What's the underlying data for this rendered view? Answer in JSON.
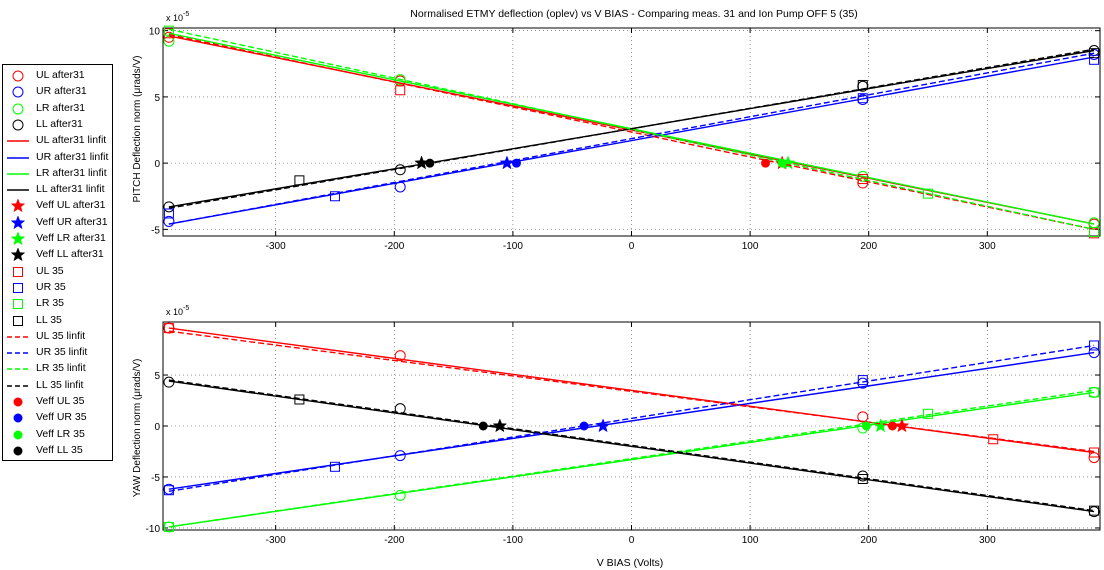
{
  "chart_data": [
    {
      "type": "line",
      "title": "Normalised ETMY deflection (oplev) vs V BIAS - Comparing meas. 31 and Ion Pump OFF 5 (35)",
      "ylabel": "PITCH Deflection norm (μrads/V)",
      "xlabel": "",
      "exponent_label": "x 10",
      "exponent_sup": "-5",
      "xlim": [
        -395,
        395
      ],
      "ylim": [
        -5.5,
        10.2
      ],
      "xticks": [
        -300,
        -200,
        -100,
        0,
        100,
        200,
        300
      ],
      "xtick_labels": [
        "-300",
        "-200",
        "-100",
        "0",
        "100",
        "200",
        "300"
      ],
      "yticks": [
        -5,
        0,
        5,
        10
      ],
      "ytick_labels": [
        "-5",
        "0",
        "5",
        "10"
      ],
      "grid": true,
      "series": [
        {
          "name": "UL after31",
          "group": "after31",
          "color": "#ff0000",
          "marker": "circle",
          "x": [
            -390,
            -195,
            195,
            390
          ],
          "y": [
            9.5,
            6.2,
            -1.5,
            -4.6
          ]
        },
        {
          "name": "UR after31",
          "group": "after31",
          "color": "#0000ff",
          "marker": "circle",
          "x": [
            -390,
            -195,
            195,
            390
          ],
          "y": [
            -4.4,
            -1.8,
            4.8,
            8.2
          ]
        },
        {
          "name": "LR after31",
          "group": "after31",
          "color": "#00ff00",
          "marker": "circle",
          "x": [
            -390,
            -195,
            195,
            390
          ],
          "y": [
            9.2,
            6.3,
            -1.0,
            -4.5
          ]
        },
        {
          "name": "LL after31",
          "group": "after31",
          "color": "#000000",
          "marker": "circle",
          "x": [
            -390,
            -195,
            195,
            390
          ],
          "y": [
            -3.3,
            -0.5,
            5.8,
            8.5
          ]
        },
        {
          "name": "UL after31 linfit",
          "color": "#ff0000",
          "style": "solid",
          "x": [
            -390,
            390
          ],
          "y": [
            9.6,
            -4.6
          ]
        },
        {
          "name": "UR after31 linfit",
          "color": "#0000ff",
          "style": "solid",
          "x": [
            -390,
            390
          ],
          "y": [
            -4.6,
            8.0
          ]
        },
        {
          "name": "LR after31 linfit",
          "color": "#00ff00",
          "style": "solid",
          "x": [
            -390,
            390
          ],
          "y": [
            9.8,
            -4.6
          ]
        },
        {
          "name": "LL after31 linfit",
          "color": "#000000",
          "style": "solid",
          "x": [
            -390,
            390
          ],
          "y": [
            -3.3,
            8.5
          ]
        },
        {
          "name": "Veff UL after31",
          "color": "#ff0000",
          "marker": "star",
          "x": [
            127
          ],
          "y": [
            0
          ]
        },
        {
          "name": "Veff UR after31",
          "color": "#0000ff",
          "marker": "star",
          "x": [
            -105
          ],
          "y": [
            0
          ]
        },
        {
          "name": "Veff LR after31",
          "color": "#00ff00",
          "marker": "star",
          "x": [
            132
          ],
          "y": [
            0
          ]
        },
        {
          "name": "Veff LL after31",
          "color": "#000000",
          "marker": "star",
          "x": [
            -177
          ],
          "y": [
            0
          ]
        },
        {
          "name": "UL 35",
          "group": "35",
          "color": "#ff0000",
          "marker": "square",
          "x": [
            -390,
            -195,
            195,
            390
          ],
          "y": [
            9.8,
            5.5,
            -1.2,
            -5.3
          ]
        },
        {
          "name": "UR 35",
          "group": "35",
          "color": "#0000ff",
          "marker": "square",
          "x": [
            -390,
            -250,
            195,
            390
          ],
          "y": [
            -3.8,
            -2.5,
            4.9,
            7.8
          ]
        },
        {
          "name": "LR 35",
          "group": "35",
          "color": "#00ff00",
          "marker": "square",
          "x": [
            -390,
            250,
            390
          ],
          "y": [
            10.0,
            -2.3,
            -5.2
          ]
        },
        {
          "name": "LL 35",
          "group": "35",
          "color": "#000000",
          "marker": "square",
          "x": [
            -280,
            195,
            390
          ],
          "y": [
            -1.3,
            5.9,
            8.3
          ]
        },
        {
          "name": "UL 35 linfit",
          "color": "#ff0000",
          "style": "dashed",
          "x": [
            -390,
            390
          ],
          "y": [
            9.7,
            -5.0
          ]
        },
        {
          "name": "UR 35 linfit",
          "color": "#0000ff",
          "style": "dashed",
          "x": [
            -390,
            390
          ],
          "y": [
            -4.6,
            8.3
          ]
        },
        {
          "name": "LR 35 linfit",
          "color": "#00ff00",
          "style": "dashed",
          "x": [
            -390,
            390
          ],
          "y": [
            10.1,
            -5.0
          ]
        },
        {
          "name": "LL 35 linfit",
          "color": "#000000",
          "style": "dashed",
          "x": [
            -390,
            390
          ],
          "y": [
            -3.4,
            8.6
          ]
        },
        {
          "name": "Veff UL 35",
          "color": "#ff0000",
          "marker": "dot",
          "x": [
            113
          ],
          "y": [
            0
          ]
        },
        {
          "name": "Veff UR 35",
          "color": "#0000ff",
          "marker": "dot",
          "x": [
            -97
          ],
          "y": [
            0
          ]
        },
        {
          "name": "Veff LR 35",
          "color": "#00ff00",
          "marker": "dot",
          "x": [
            127
          ],
          "y": [
            0
          ]
        },
        {
          "name": "Veff LL 35",
          "color": "#000000",
          "marker": "dot",
          "x": [
            -170
          ],
          "y": [
            0
          ]
        }
      ]
    },
    {
      "type": "line",
      "title": "",
      "ylabel": "YAW Deflection norm (μrads/V)",
      "xlabel": "V BIAS (Volts)",
      "exponent_label": "x 10",
      "exponent_sup": "-5",
      "xlim": [
        -395,
        395
      ],
      "ylim": [
        -10.2,
        10.2
      ],
      "xticks": [
        -300,
        -200,
        -100,
        0,
        100,
        200,
        300
      ],
      "xtick_labels": [
        "-300",
        "-200",
        "-100",
        "0",
        "100",
        "200",
        "300"
      ],
      "yticks": [
        -10,
        -5,
        0,
        5
      ],
      "ytick_labels": [
        "-10",
        "-5",
        "0",
        "5"
      ],
      "grid": true,
      "series": [
        {
          "name": "UL after31",
          "color": "#ff0000",
          "marker": "circle",
          "x": [
            -390,
            -195,
            195,
            390
          ],
          "y": [
            9.6,
            6.9,
            0.9,
            -3.1
          ]
        },
        {
          "name": "UR after31",
          "color": "#0000ff",
          "marker": "circle",
          "x": [
            -390,
            -195,
            195,
            390
          ],
          "y": [
            -6.2,
            -2.9,
            4.2,
            7.2
          ]
        },
        {
          "name": "LR after31",
          "color": "#00ff00",
          "marker": "circle",
          "x": [
            -390,
            -195,
            195,
            390
          ],
          "y": [
            -9.9,
            -6.8,
            -0.2,
            3.3
          ]
        },
        {
          "name": "LL after31",
          "color": "#000000",
          "marker": "circle",
          "x": [
            -390,
            -195,
            195,
            390
          ],
          "y": [
            4.3,
            1.7,
            -4.9,
            -8.4
          ]
        },
        {
          "name": "UL after31 linfit",
          "color": "#ff0000",
          "style": "solid",
          "x": [
            -390,
            390
          ],
          "y": [
            9.6,
            -2.6
          ]
        },
        {
          "name": "UR after31 linfit",
          "color": "#0000ff",
          "style": "solid",
          "x": [
            -390,
            390
          ],
          "y": [
            -6.2,
            7.2
          ]
        },
        {
          "name": "LR after31 linfit",
          "color": "#00ff00",
          "style": "solid",
          "x": [
            -390,
            390
          ],
          "y": [
            -9.9,
            3.3
          ]
        },
        {
          "name": "LL after31 linfit",
          "color": "#000000",
          "style": "solid",
          "x": [
            -390,
            390
          ],
          "y": [
            4.4,
            -8.4
          ]
        },
        {
          "name": "Veff UL after31",
          "color": "#ff0000",
          "marker": "star",
          "x": [
            228
          ],
          "y": [
            0
          ]
        },
        {
          "name": "Veff UR after31",
          "color": "#0000ff",
          "marker": "star",
          "x": [
            -24
          ],
          "y": [
            0
          ]
        },
        {
          "name": "Veff LR after31",
          "color": "#00ff00",
          "marker": "star",
          "x": [
            210
          ],
          "y": [
            0
          ]
        },
        {
          "name": "Veff LL after31",
          "color": "#000000",
          "marker": "star",
          "x": [
            -111
          ],
          "y": [
            0
          ]
        },
        {
          "name": "UL 35",
          "color": "#ff0000",
          "marker": "square",
          "x": [
            -390,
            305,
            390
          ],
          "y": [
            9.6,
            -1.3,
            -2.6
          ]
        },
        {
          "name": "UR 35",
          "color": "#0000ff",
          "marker": "square",
          "x": [
            -390,
            -250,
            195,
            390
          ],
          "y": [
            -6.3,
            -4.0,
            4.5,
            7.9
          ]
        },
        {
          "name": "LR 35",
          "color": "#00ff00",
          "marker": "square",
          "x": [
            -390,
            250,
            390
          ],
          "y": [
            -9.9,
            1.2,
            3.3
          ]
        },
        {
          "name": "LL 35",
          "color": "#000000",
          "marker": "square",
          "x": [
            -280,
            195,
            390
          ],
          "y": [
            2.6,
            -5.2,
            -8.3
          ]
        },
        {
          "name": "UL 35 linfit",
          "color": "#ff0000",
          "style": "dashed",
          "x": [
            -390,
            390
          ],
          "y": [
            9.3,
            -2.5
          ]
        },
        {
          "name": "UR 35 linfit",
          "color": "#0000ff",
          "style": "dashed",
          "x": [
            -390,
            390
          ],
          "y": [
            -6.4,
            7.9
          ]
        },
        {
          "name": "LR 35 linfit",
          "color": "#00ff00",
          "style": "dashed",
          "x": [
            -390,
            390
          ],
          "y": [
            -9.9,
            3.5
          ]
        },
        {
          "name": "LL 35 linfit",
          "color": "#000000",
          "style": "dashed",
          "x": [
            -390,
            390
          ],
          "y": [
            4.5,
            -8.3
          ]
        },
        {
          "name": "Veff UL 35",
          "color": "#ff0000",
          "marker": "dot",
          "x": [
            220
          ],
          "y": [
            0
          ]
        },
        {
          "name": "Veff UR 35",
          "color": "#0000ff",
          "marker": "dot",
          "x": [
            -40
          ],
          "y": [
            0
          ]
        },
        {
          "name": "Veff LR 35",
          "color": "#00ff00",
          "marker": "dot",
          "x": [
            198
          ],
          "y": [
            0
          ]
        },
        {
          "name": "Veff LL 35",
          "color": "#000000",
          "marker": "dot",
          "x": [
            -125
          ],
          "y": [
            0
          ]
        }
      ]
    }
  ],
  "legend": {
    "placement": "left",
    "entries": [
      {
        "label": "UL after31",
        "color": "#ff0000",
        "kind": "circle"
      },
      {
        "label": "UR after31",
        "color": "#0000ff",
        "kind": "circle"
      },
      {
        "label": "LR after31",
        "color": "#00ff00",
        "kind": "circle"
      },
      {
        "label": "LL after31",
        "color": "#000000",
        "kind": "circle"
      },
      {
        "label": "UL after31 linfit",
        "color": "#ff0000",
        "kind": "solid"
      },
      {
        "label": "UR after31 linfit",
        "color": "#0000ff",
        "kind": "solid"
      },
      {
        "label": "LR after31 linfit",
        "color": "#00ff00",
        "kind": "solid"
      },
      {
        "label": "LL after31 linfit",
        "color": "#000000",
        "kind": "solid"
      },
      {
        "label": "Veff UL after31",
        "color": "#ff0000",
        "kind": "star"
      },
      {
        "label": "Veff UR after31",
        "color": "#0000ff",
        "kind": "star"
      },
      {
        "label": "Veff LR after31",
        "color": "#00ff00",
        "kind": "star"
      },
      {
        "label": "Veff LL after31",
        "color": "#000000",
        "kind": "star"
      },
      {
        "label": "UL 35",
        "color": "#ff0000",
        "kind": "square"
      },
      {
        "label": "UR 35",
        "color": "#0000ff",
        "kind": "square"
      },
      {
        "label": "LR 35",
        "color": "#00ff00",
        "kind": "square"
      },
      {
        "label": "LL 35",
        "color": "#000000",
        "kind": "square"
      },
      {
        "label": "UL 35 linfit",
        "color": "#ff0000",
        "kind": "dashed"
      },
      {
        "label": "UR 35 linfit",
        "color": "#0000ff",
        "kind": "dashed"
      },
      {
        "label": "LR 35 linfit",
        "color": "#00ff00",
        "kind": "dashed"
      },
      {
        "label": "LL 35 linfit",
        "color": "#000000",
        "kind": "dashed"
      },
      {
        "label": "Veff UL 35",
        "color": "#ff0000",
        "kind": "dot"
      },
      {
        "label": "Veff UR 35",
        "color": "#0000ff",
        "kind": "dot"
      },
      {
        "label": "Veff LR 35",
        "color": "#00ff00",
        "kind": "dot"
      },
      {
        "label": "Veff LL 35",
        "color": "#000000",
        "kind": "dot"
      }
    ]
  }
}
